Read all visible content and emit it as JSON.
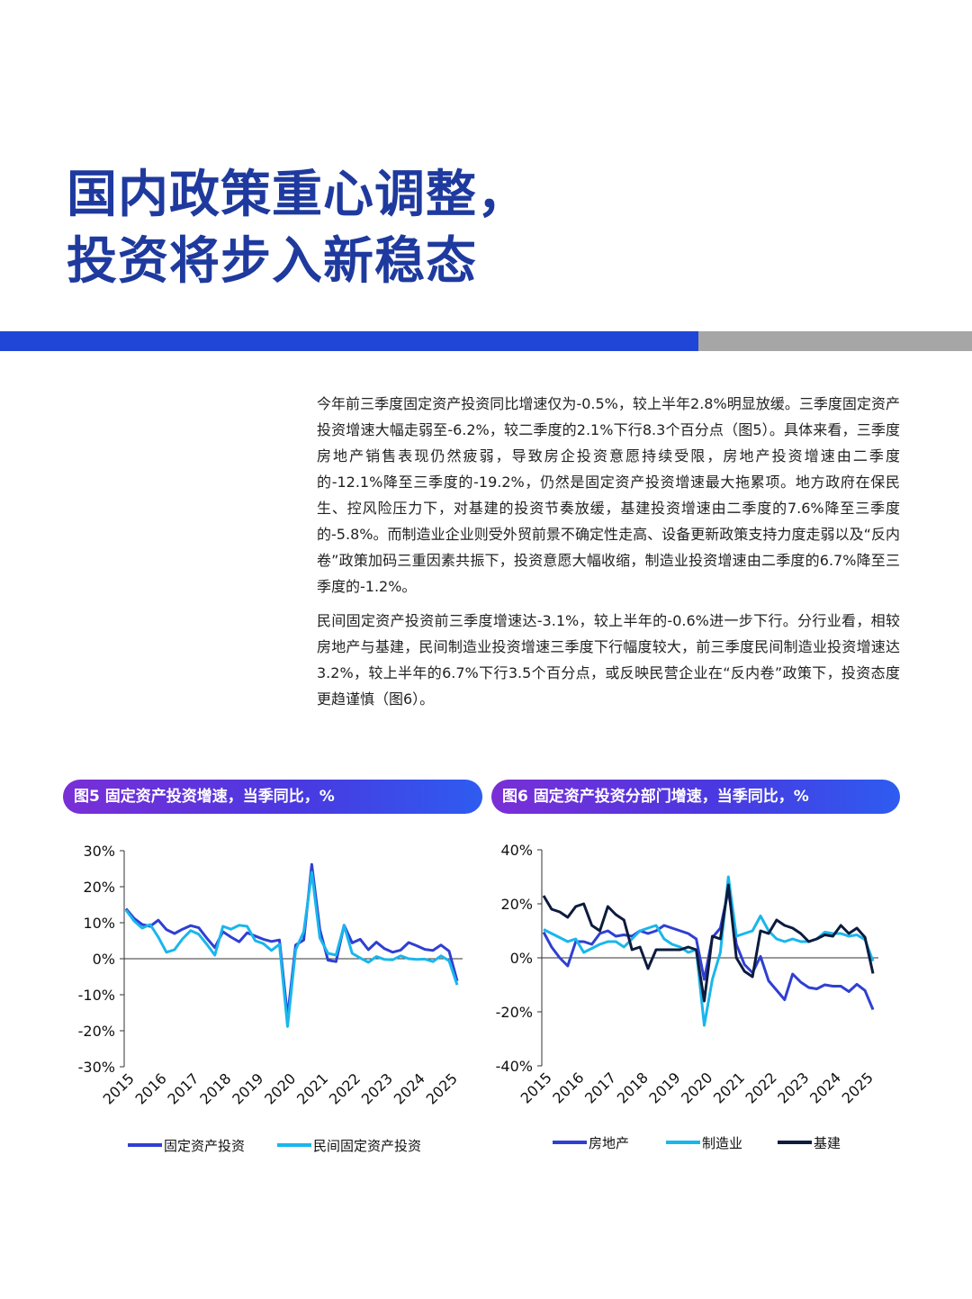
{
  "title": {
    "line1": "国内政策重心调整，",
    "line2": "投资将步入新稳态"
  },
  "colors": {
    "title": "#1f3a9e",
    "accent_bar": "#2046d8",
    "gray_bar": "#a6a6a6",
    "series_blue": "#2f3fd3",
    "series_cyan": "#19b6ec",
    "series_navy": "#0d1b3d"
  },
  "paragraphs": [
    "今年前三季度固定资产投资同比增速仅为-0.5%，较上半年2.8%明显放缓。三季度固定资产投资增速大幅走弱至-6.2%，较二季度的2.1%下行8.3个百分点（图5）。具体来看，三季度房地产销售表现仍然疲弱，导致房企投资意愿持续受限，房地产投资增速由二季度的-12.1%降至三季度的-19.2%，仍然是固定资产投资增速最大拖累项。地方政府在保民生、控风险压力下，对基建的投资节奏放缓，基建投资增速由二季度的7.6%降至三季度的-5.8%。而制造业企业则受外贸前景不确定性走高、设备更新政策支持力度走弱以及“反内卷”政策加码三重因素共振下，投资意愿大幅收缩，制造业投资增速由二季度的6.7%降至三季度的-1.2%。",
    "民间固定资产投资前三季度增速达-3.1%，较上半年的-0.6%进一步下行。分行业看，相较房地产与基建，民间制造业投资增速三季度下行幅度较大，前三季度民间制造业投资增速达3.2%，较上半年的6.7%下行3.5个百分点，或反映民营企业在“反内卷”政策下，投资态度更趋谨慎（图6）。"
  ],
  "chart5_title": "图5 固定资产投资增速，当季同比，%",
  "chart6_title": "图6 固定资产投资分部门增速，当季同比，%",
  "chart_data": [
    {
      "type": "line",
      "title": "图5 固定资产投资增速，当季同比，%",
      "x_start": 2015,
      "x_ticks": [
        "2015",
        "2016",
        "2017",
        "2018",
        "2019",
        "2020",
        "2021",
        "2022",
        "2023",
        "2024",
        "2025"
      ],
      "y_ticks": [
        "30%",
        "20%",
        "10%",
        "0%",
        "-10%",
        "-20%",
        "-30%"
      ],
      "ylim": [
        -30,
        30
      ],
      "series": [
        {
          "name": "固定资产投资",
          "color": "#2f3fd3",
          "values": [
            13.9,
            11.2,
            9.5,
            9.0,
            10.7,
            8.1,
            7.0,
            8.2,
            9.2,
            8.6,
            5.7,
            3.1,
            7.5,
            6.0,
            4.7,
            7.2,
            6.3,
            5.4,
            4.8,
            5.2,
            -16.1,
            3.8,
            5.2,
            26.2,
            8.1,
            -0.4,
            -0.8,
            9.3,
            4.4,
            5.4,
            2.5,
            4.6,
            2.8,
            1.8,
            2.4,
            4.5,
            3.6,
            2.6,
            2.3,
            3.8,
            2.1,
            -6.2
          ]
        },
        {
          "name": "民间固定资产投资",
          "color": "#19b6ec",
          "values": [
            13.5,
            10.5,
            8.5,
            9.5,
            6.0,
            1.8,
            2.5,
            5.5,
            7.8,
            6.8,
            4.0,
            1.0,
            9.0,
            8.2,
            9.3,
            9.0,
            5.0,
            4.2,
            2.3,
            4.0,
            -18.8,
            2.5,
            7.5,
            24.0,
            5.8,
            1.5,
            1.0,
            9.2,
            1.5,
            0.2,
            -1.0,
            0.6,
            -0.2,
            -0.3,
            0.8,
            0.0,
            -0.2,
            -0.1,
            -0.8,
            0.8,
            -0.6,
            -7.3
          ]
        }
      ]
    },
    {
      "type": "line",
      "title": "图6 固定资产投资分部门增速，当季同比，%",
      "x_start": 2015,
      "x_ticks": [
        "2015",
        "2016",
        "2017",
        "2018",
        "2019",
        "2020",
        "2021",
        "2022",
        "2023",
        "2024",
        "2025"
      ],
      "y_ticks": [
        "40%",
        "20%",
        "0%",
        "-20%",
        "-40%"
      ],
      "ylim": [
        -40,
        40
      ],
      "series": [
        {
          "name": "房地产",
          "color": "#2f3fd3",
          "values": [
            9.5,
            4.0,
            0.0,
            -3.0,
            6.0,
            6.0,
            5.0,
            9.0,
            10.0,
            8.0,
            8.5,
            8.0,
            10.0,
            9.0,
            10.0,
            12.0,
            11.0,
            10.0,
            9.0,
            7.0,
            -8.0,
            7.5,
            11.0,
            25.0,
            5.0,
            -2.5,
            -5.5,
            0.5,
            -8.5,
            -12.0,
            -15.5,
            -6.0,
            -9.0,
            -11.0,
            -11.5,
            -10.0,
            -10.5,
            -10.5,
            -12.5,
            -9.8,
            -12.1,
            -19.2
          ]
        },
        {
          "name": "制造业",
          "color": "#19b6ec",
          "values": [
            10.5,
            9.0,
            7.5,
            6.0,
            7.0,
            2.0,
            3.5,
            5.0,
            6.0,
            6.0,
            4.0,
            7.0,
            10.0,
            11.0,
            12.0,
            7.0,
            5.0,
            4.0,
            2.0,
            3.0,
            -25.0,
            -8.0,
            2.0,
            30.0,
            8.0,
            9.0,
            10.0,
            15.5,
            10.0,
            7.0,
            6.0,
            7.0,
            6.0,
            6.0,
            7.0,
            9.5,
            9.0,
            9.0,
            8.0,
            8.5,
            6.7,
            -1.2
          ]
        },
        {
          "name": "基建",
          "color": "#0d1b3d",
          "values": [
            23.0,
            18.0,
            17.0,
            15.0,
            19.0,
            20.0,
            12.0,
            10.0,
            19.0,
            16.0,
            14.0,
            3.0,
            4.0,
            -4.0,
            3.0,
            3.0,
            3.0,
            3.0,
            4.0,
            3.0,
            -16.0,
            8.0,
            7.0,
            27.0,
            0.0,
            -5.0,
            -7.0,
            10.0,
            9.0,
            14.0,
            12.0,
            11.0,
            9.0,
            6.0,
            7.0,
            8.5,
            8.0,
            12.0,
            9.0,
            11.0,
            7.6,
            -5.8
          ]
        }
      ]
    }
  ]
}
